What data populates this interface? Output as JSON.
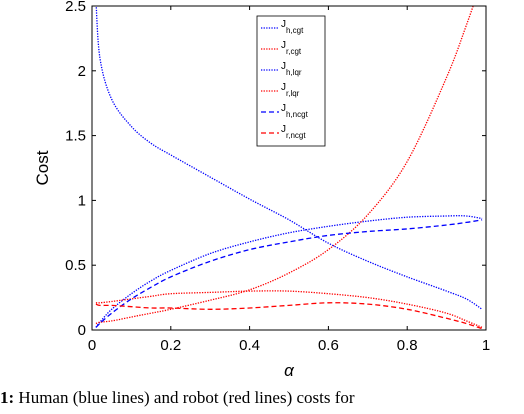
{
  "chart_data": {
    "type": "line",
    "title": "",
    "xlabel": "α",
    "ylabel": "Cost",
    "xlim": [
      0,
      1
    ],
    "ylim": [
      0,
      2.5
    ],
    "xticks": [
      "0",
      "0.2",
      "0.4",
      "0.6",
      "0.8",
      "1"
    ],
    "yticks": [
      "0",
      "0.5",
      "1",
      "1.5",
      "2",
      "2.5"
    ],
    "grid": false,
    "legend_position": "top-center",
    "x": [
      0.01,
      0.02,
      0.05,
      0.1,
      0.15,
      0.2,
      0.3,
      0.4,
      0.5,
      0.6,
      0.7,
      0.8,
      0.9,
      0.95,
      0.99
    ],
    "series": [
      {
        "name": "J",
        "subscript": "h,cgt",
        "color": "#0000ff",
        "style": "dotted",
        "values": [
          0.02,
          0.06,
          0.16,
          0.28,
          0.38,
          0.46,
          0.59,
          0.68,
          0.75,
          0.8,
          0.84,
          0.87,
          0.88,
          0.88,
          0.86
        ]
      },
      {
        "name": "J",
        "subscript": "r,cgt",
        "color": "#ff0000",
        "style": "dotted",
        "values": [
          0.05,
          0.06,
          0.07,
          0.1,
          0.13,
          0.16,
          0.23,
          0.31,
          0.44,
          0.62,
          0.89,
          1.3,
          1.95,
          2.35,
          2.7
        ]
      },
      {
        "name": "J",
        "subscript": "h,lqr",
        "color": "#0000ff",
        "style": "dotted",
        "values": [
          2.55,
          2.1,
          1.78,
          1.57,
          1.44,
          1.35,
          1.18,
          1.01,
          0.85,
          0.67,
          0.53,
          0.41,
          0.3,
          0.24,
          0.16
        ]
      },
      {
        "name": "J",
        "subscript": "r,lqr",
        "color": "#ff0000",
        "style": "dotted",
        "values": [
          0.21,
          0.21,
          0.22,
          0.24,
          0.26,
          0.28,
          0.29,
          0.3,
          0.3,
          0.28,
          0.25,
          0.2,
          0.13,
          0.07,
          0.02
        ]
      },
      {
        "name": "J",
        "subscript": "h,ncgt",
        "color": "#0000ff",
        "style": "dashed",
        "values": [
          0.02,
          0.05,
          0.13,
          0.24,
          0.33,
          0.41,
          0.53,
          0.62,
          0.68,
          0.73,
          0.76,
          0.78,
          0.81,
          0.83,
          0.85
        ]
      },
      {
        "name": "J",
        "subscript": "r,ncgt",
        "color": "#ff0000",
        "style": "dashed",
        "values": [
          0.2,
          0.19,
          0.19,
          0.18,
          0.17,
          0.17,
          0.16,
          0.17,
          0.19,
          0.21,
          0.2,
          0.16,
          0.09,
          0.05,
          0.01
        ]
      }
    ]
  },
  "caption": {
    "number": "1:",
    "text": " Human (blue lines) and robot (red lines) costs for"
  }
}
